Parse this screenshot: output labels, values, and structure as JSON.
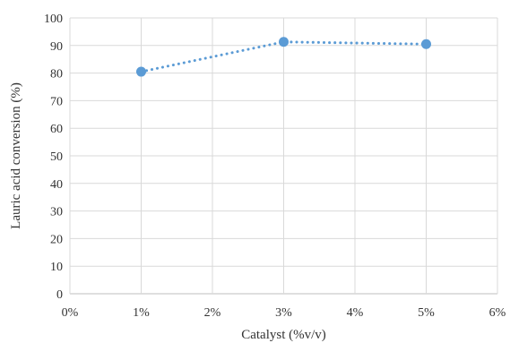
{
  "chart_data": {
    "type": "line",
    "xlabel": "Catalyst (%v/v)",
    "ylabel": "Lauric  acid conversion (%)",
    "x_ticks": [
      "0%",
      "1%",
      "2%",
      "3%",
      "4%",
      "5%",
      "6%"
    ],
    "y_ticks": [
      "0",
      "10",
      "20",
      "30",
      "40",
      "50",
      "60",
      "70",
      "80",
      "90",
      "100"
    ],
    "xlim": [
      0,
      6
    ],
    "ylim": [
      0,
      100
    ],
    "grid": true,
    "legend": "none",
    "series": [
      {
        "x": [
          1,
          3,
          5
        ],
        "y": [
          80.5,
          91.3,
          90.5
        ],
        "color": "#5B9BD5",
        "line_style": "dotted",
        "marker": "circle"
      }
    ]
  }
}
